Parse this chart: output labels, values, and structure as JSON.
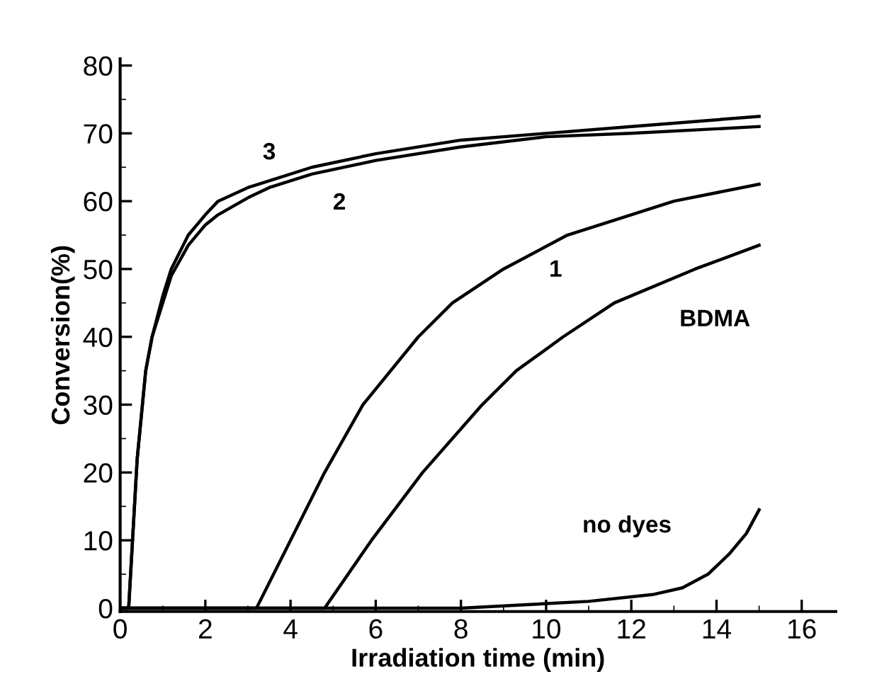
{
  "chart_data": {
    "type": "line",
    "xlabel": "Irradiation time (min)",
    "ylabel": "Conversion(%)",
    "xlim": [
      0,
      16.8
    ],
    "ylim": [
      -0.5,
      81
    ],
    "xticks": [
      0,
      2,
      4,
      6,
      8,
      10,
      12,
      14,
      16
    ],
    "yticks": [
      0,
      10,
      20,
      30,
      40,
      50,
      60,
      70,
      80
    ],
    "grid": false,
    "legend": false,
    "marker": "none",
    "line_style": "solid",
    "series": [
      {
        "name": "3",
        "color": "#000000",
        "x": [
          0,
          0.2,
          0.4,
          0.6,
          0.75,
          1.0,
          1.2,
          1.6,
          2.0,
          2.3,
          3.0,
          3.5,
          4.5,
          6,
          8,
          10,
          12,
          15
        ],
        "values": [
          0,
          0,
          22,
          35,
          40,
          46,
          50,
          55,
          58,
          60,
          62,
          63,
          65,
          67,
          69,
          70,
          71,
          72.5
        ]
      },
      {
        "name": "2",
        "color": "#000000",
        "x": [
          0,
          0.2,
          0.4,
          0.6,
          0.75,
          1.0,
          1.2,
          1.6,
          2.0,
          2.3,
          3.0,
          3.5,
          4.5,
          6,
          8,
          10,
          12,
          15
        ],
        "values": [
          0,
          0,
          22,
          35,
          40,
          45,
          49,
          53.5,
          56.5,
          58,
          60.5,
          62,
          64,
          66,
          68,
          69.5,
          70,
          71
        ]
      },
      {
        "name": "1",
        "color": "#000000",
        "x": [
          0,
          3.2,
          4.0,
          4.8,
          5.7,
          7.0,
          7.8,
          9.0,
          10.5,
          12,
          13,
          15
        ],
        "values": [
          0,
          0,
          10,
          20,
          30,
          40,
          45,
          50,
          55,
          58,
          60,
          62.5
        ]
      },
      {
        "name": "BDMA",
        "color": "#000000",
        "x": [
          0,
          4.8,
          5.9,
          7.1,
          8.5,
          9.3,
          10.4,
          11.6,
          13.5,
          15
        ],
        "values": [
          0,
          0,
          10,
          20,
          30,
          35,
          40,
          45,
          50,
          53.5
        ]
      },
      {
        "name": "no dyes",
        "color": "#000000",
        "x": [
          0,
          8,
          11,
          12.5,
          13.2,
          13.8,
          14.3,
          14.7,
          15
        ],
        "values": [
          0,
          0,
          1,
          2,
          3,
          5,
          8,
          11,
          14.5
        ]
      }
    ]
  }
}
